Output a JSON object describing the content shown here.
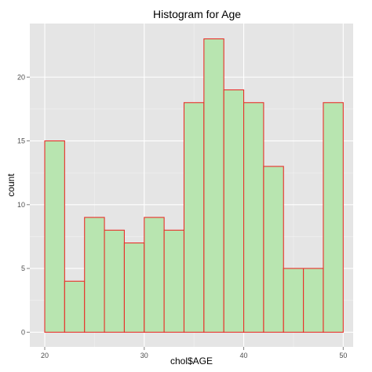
{
  "chart_data": {
    "type": "bar",
    "title": "Histogram for Age",
    "xlabel": "chol$AGE",
    "ylabel": "count",
    "bins": [
      {
        "x0": 20,
        "x1": 22,
        "count": 15
      },
      {
        "x0": 22,
        "x1": 24,
        "count": 4
      },
      {
        "x0": 24,
        "x1": 26,
        "count": 9
      },
      {
        "x0": 26,
        "x1": 28,
        "count": 8
      },
      {
        "x0": 28,
        "x1": 30,
        "count": 7
      },
      {
        "x0": 30,
        "x1": 32,
        "count": 9
      },
      {
        "x0": 32,
        "x1": 34,
        "count": 8
      },
      {
        "x0": 34,
        "x1": 36,
        "count": 18
      },
      {
        "x0": 36,
        "x1": 38,
        "count": 23
      },
      {
        "x0": 38,
        "x1": 40,
        "count": 19
      },
      {
        "x0": 40,
        "x1": 42,
        "count": 18
      },
      {
        "x0": 42,
        "x1": 44,
        "count": 13
      },
      {
        "x0": 44,
        "x1": 46,
        "count": 5
      },
      {
        "x0": 46,
        "x1": 48,
        "count": 5
      },
      {
        "x0": 48,
        "x1": 50,
        "count": 18
      }
    ],
    "x_ticks": [
      20,
      30,
      40,
      50
    ],
    "y_ticks": [
      0,
      5,
      10,
      15,
      20
    ],
    "xlim": [
      18.5,
      51
    ],
    "ylim": [
      -1.15,
      24.2
    ],
    "grid": true,
    "colors": {
      "panel": "#e5e5e5",
      "grid_major": "#ffffff",
      "grid_minor": "#f2f2f2",
      "bar_fill": "#b8e5b0",
      "bar_stroke": "#e8302a"
    }
  }
}
